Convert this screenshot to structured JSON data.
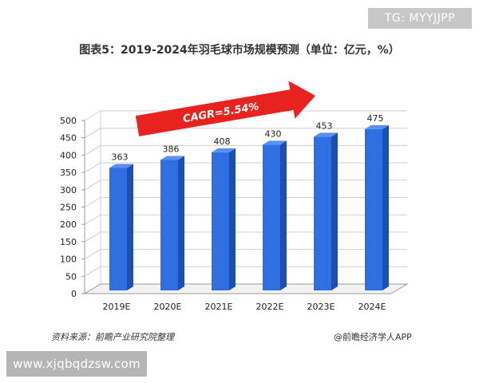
{
  "badge": "TG: MYYJJPP",
  "footer": {
    "source_left": "资料来源：前瞻产业研究院整理",
    "source_right": "@前瞻经济学人APP",
    "url": "www.xjqbqdzsw.com"
  },
  "chart_data": {
    "type": "bar",
    "title": "图表5：2019-2024年羽毛球市场规模预测（单位：亿元，%）",
    "categories": [
      "2019E",
      "2020E",
      "2021E",
      "2022E",
      "2023E",
      "2024E"
    ],
    "values": [
      363,
      386,
      408,
      430,
      453,
      475
    ],
    "ylim": [
      0,
      500
    ],
    "yticks": [
      0,
      50,
      100,
      150,
      200,
      250,
      300,
      350,
      400,
      450,
      500
    ],
    "annotation": "CAGR=5.54%",
    "grid": true,
    "colors": {
      "bar": "#2f6fe0",
      "bar_side": "#1c4fb0",
      "bar_top": "#5b8fef",
      "arrow": "#e8231f"
    }
  }
}
